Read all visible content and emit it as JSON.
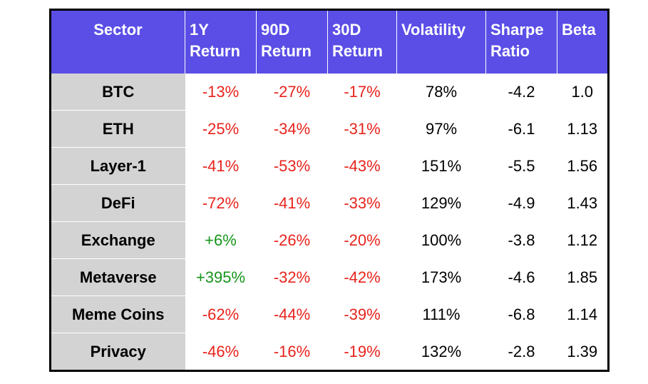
{
  "table": {
    "header": [
      "Sector",
      "1Y\nReturn",
      "90D\nReturn",
      "30D\nReturn",
      "Volatility",
      "Sharpe\nRatio",
      "Beta"
    ],
    "rows": [
      [
        "BTC",
        "-13%",
        "-27%",
        "-17%",
        "78%",
        "-4.2",
        "1.0"
      ],
      [
        "ETH",
        "-25%",
        "-34%",
        "-31%",
        "97%",
        "-6.1",
        "1.13"
      ],
      [
        "Layer-1",
        "-41%",
        "-53%",
        "-43%",
        "151%",
        "-5.5",
        "1.56"
      ],
      [
        "DeFi",
        "-72%",
        "-41%",
        "-33%",
        "129%",
        "-4.9",
        "1.43"
      ],
      [
        "Exchange",
        "+6%",
        "-26%",
        "-20%",
        "100%",
        "-3.8",
        "1.12"
      ],
      [
        "Metaverse",
        "+395%",
        "-32%",
        "-42%",
        "173%",
        "-4.6",
        "1.85"
      ],
      [
        "Meme Coins",
        "-62%",
        "-44%",
        "-39%",
        "111%",
        "-6.8",
        "1.14"
      ],
      [
        "Privacy",
        "-46%",
        "-16%",
        "-19%",
        "132%",
        "-2.8",
        "1.39"
      ]
    ]
  }
}
